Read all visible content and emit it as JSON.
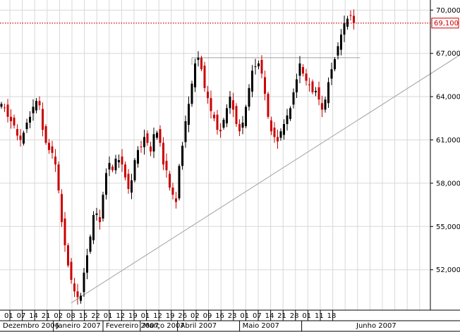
{
  "chart_data": {
    "type": "candlestick",
    "title": "",
    "xlabel": "",
    "ylabel": "",
    "y_axis_position": "right",
    "grid": true,
    "ylim": [
      49200,
      70700
    ],
    "y_ticks": [
      "70,000",
      "67,000",
      "64,000",
      "61,000",
      "58,000",
      "55,000",
      "52,000"
    ],
    "y_tick_values": [
      70000,
      67000,
      64000,
      61000,
      58000,
      55000,
      52000
    ],
    "current_price": {
      "value": 69100,
      "label": "69,100"
    },
    "day_ticks": [
      "01",
      "07",
      "14",
      "21",
      "02",
      "08",
      "15",
      "22",
      "01",
      "12",
      "19",
      "01",
      "12",
      "19",
      "26",
      "02",
      "09",
      "16",
      "23",
      "01",
      "07",
      "14",
      "21",
      "28",
      "01",
      "11",
      "18"
    ],
    "month_labels": [
      "Dezembro 2006",
      "Janeiro 2007",
      "Fevereiro 2007",
      "Março 2007",
      "Abril 2007",
      "Maio 2007",
      "Junho 2007"
    ],
    "colors": {
      "up": "#000000",
      "down": "#cc0000",
      "trendline": "#a0a0a0",
      "price_line": "#cc0000",
      "grid": "#d8d8d8"
    },
    "trendlines": [
      {
        "name": "support",
        "from": {
          "index": 22,
          "value": 49700
        },
        "to": {
          "index": 163,
          "value": 69500
        }
      },
      {
        "name": "resistance",
        "from": {
          "index": 60,
          "value": 66700
        },
        "to": {
          "index": 113,
          "value": 66700
        }
      }
    ],
    "closes": [
      63500,
      63200,
      62600,
      62300,
      62000,
      61300,
      61000,
      61500,
      62200,
      62600,
      63300,
      63700,
      63400,
      61700,
      60800,
      60300,
      60100,
      59300,
      57500,
      55300,
      53700,
      52300,
      51300,
      50500,
      50100,
      50200,
      51800,
      53000,
      54300,
      55800,
      55900,
      55300,
      57200,
      58700,
      59400,
      58900,
      59700,
      59600,
      59300,
      58400,
      57600,
      58200,
      59600,
      60300,
      60500,
      61200,
      60800,
      60200,
      61400,
      61500,
      60800,
      59300,
      58900,
      57700,
      57200,
      56700,
      59200,
      60600,
      62300,
      63500,
      64900,
      66300,
      66700,
      65900,
      64600,
      63900,
      63000,
      62500,
      61700,
      61600,
      62400,
      63200,
      64000,
      63100,
      62100,
      61600,
      62200,
      63300,
      64600,
      65800,
      66100,
      66300,
      65600,
      64200,
      62600,
      61600,
      61200,
      60900,
      61600,
      62100,
      62700,
      63200,
      64300,
      65200,
      66300,
      65600,
      65100,
      64800,
      64300,
      64400,
      63800,
      63100,
      63800,
      65000,
      65900,
      66600,
      67500,
      68300,
      69100,
      69400,
      69600,
      69100
    ]
  }
}
